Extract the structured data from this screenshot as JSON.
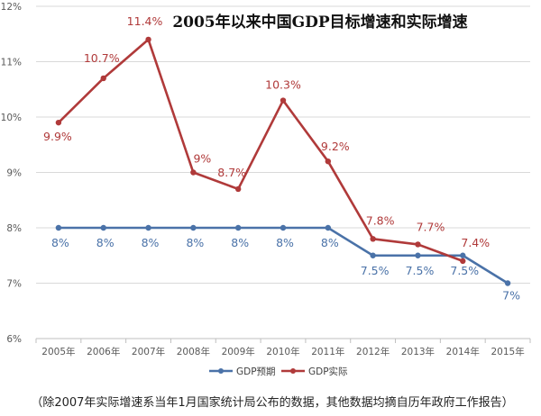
{
  "chart_data": {
    "type": "line",
    "title": "2005年以来中国GDP目标增速和实际增速",
    "categories": [
      "2005年",
      "2006年",
      "2007年",
      "2008年",
      "2009年",
      "2010年",
      "2011年",
      "2012年",
      "2013年",
      "2014年",
      "2015年"
    ],
    "ylim": [
      6,
      12
    ],
    "yticks": [
      "6%",
      "7%",
      "8%",
      "9%",
      "10%",
      "11%",
      "12%"
    ],
    "grid": true,
    "legend_position": "bottom",
    "series": [
      {
        "name": "GDP预期",
        "color": "#4a72a8",
        "values": [
          8,
          8,
          8,
          8,
          8,
          8,
          8,
          7.5,
          7.5,
          7.5,
          7
        ],
        "labels": [
          "8%",
          "8%",
          "8%",
          "8%",
          "8%",
          "8%",
          "8%",
          "7.5%",
          "7.5%",
          "7.5%",
          "7%"
        ]
      },
      {
        "name": "GDP实际",
        "color": "#b03a3a",
        "values": [
          9.9,
          10.7,
          11.4,
          9.0,
          8.7,
          10.3,
          9.2,
          7.8,
          7.7,
          7.4,
          null
        ],
        "labels": [
          "9.9%",
          "10.7%",
          "11.4%",
          "9%",
          "8.7%",
          "10.3%",
          "9.2%",
          "7.8%",
          "7.7%",
          "7.4%",
          null
        ]
      }
    ],
    "footnote": "（除2007年实际增速系当年1月国家统计局公布的数据，其他数据均摘自历年政府工作报告）"
  }
}
